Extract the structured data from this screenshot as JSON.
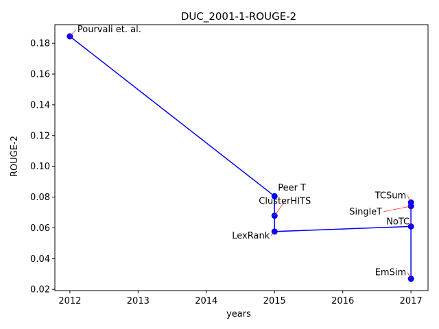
{
  "chart_data": {
    "type": "line",
    "title": "DUC_2001-1-ROUGE-2",
    "xlabel": "years",
    "ylabel": "ROUGE-2",
    "xlim": [
      2011.78,
      2017.25
    ],
    "ylim": [
      0.0192,
      0.1921
    ],
    "x_ticks": [
      2012,
      2013,
      2014,
      2015,
      2016,
      2017
    ],
    "y_ticks": [
      0.02,
      0.04,
      0.06,
      0.08,
      0.1,
      0.12,
      0.14,
      0.16,
      0.18
    ],
    "grid": false,
    "line_color": "#0000ff",
    "marker_color": "#0000ff",
    "annotation_arrow_color": "#ff0000",
    "points": [
      {
        "label": "Pourvali et. al.",
        "x": 2012,
        "y": 0.1845
      },
      {
        "label": "Peer T",
        "x": 2015,
        "y": 0.0806
      },
      {
        "label": "ClusterHITS",
        "x": 2015,
        "y": 0.0679
      },
      {
        "label": "LexRank",
        "x": 2015,
        "y": 0.0576
      },
      {
        "label": "NoTC",
        "x": 2017,
        "y": 0.0609
      },
      {
        "label": "TCSum",
        "x": 2017,
        "y": 0.0765
      },
      {
        "label": "SingleT",
        "x": 2017,
        "y": 0.0741
      },
      {
        "label": "EmSim",
        "x": 2017,
        "y": 0.0269
      }
    ]
  }
}
